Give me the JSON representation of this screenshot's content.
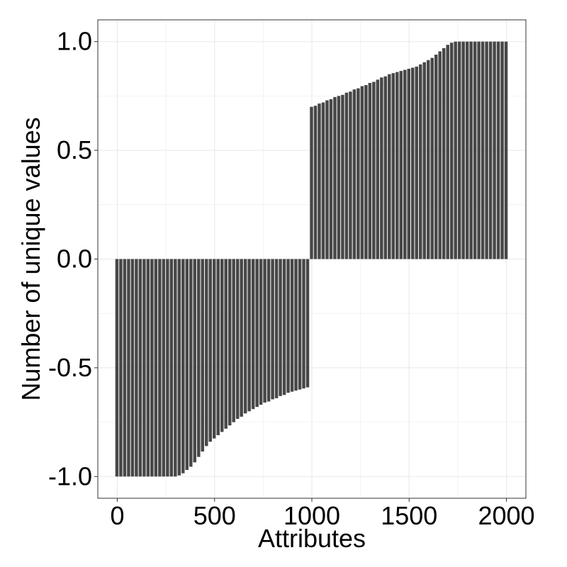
{
  "chart_data": {
    "type": "bar",
    "title": "",
    "xlabel": "Attributes",
    "ylabel": "Number of unique values",
    "xlim": [
      -100,
      2100
    ],
    "ylim": [
      -1.1,
      1.1
    ],
    "x_ticks": [
      0,
      500,
      1000,
      1500,
      2000
    ],
    "y_ticks": [
      -1.0,
      -0.5,
      0.0,
      0.5,
      1.0
    ],
    "x_tick_labels": [
      "0",
      "500",
      "1000",
      "1500",
      "2000"
    ],
    "y_tick_labels": [
      "-1.0",
      "-0.5",
      "0.0",
      "0.5",
      "1.0"
    ],
    "grid": true,
    "legend": "none",
    "bar_color": "#474747",
    "background_color": "#ffffff",
    "grid_color": "#ebebeb",
    "x": [
      0,
      20,
      40,
      60,
      80,
      100,
      120,
      140,
      160,
      180,
      200,
      220,
      240,
      260,
      280,
      300,
      320,
      340,
      360,
      380,
      400,
      420,
      440,
      460,
      480,
      500,
      520,
      540,
      560,
      580,
      600,
      620,
      640,
      660,
      680,
      700,
      720,
      740,
      760,
      780,
      800,
      820,
      840,
      860,
      880,
      900,
      920,
      940,
      960,
      980,
      1000,
      1020,
      1040,
      1060,
      1080,
      1100,
      1120,
      1140,
      1160,
      1180,
      1200,
      1220,
      1240,
      1260,
      1280,
      1300,
      1320,
      1340,
      1360,
      1380,
      1400,
      1420,
      1440,
      1460,
      1480,
      1500,
      1520,
      1540,
      1560,
      1580,
      1600,
      1620,
      1640,
      1660,
      1680,
      1700,
      1720,
      1740,
      1760,
      1780,
      1800,
      1820,
      1840,
      1860,
      1880,
      1900,
      1920,
      1940,
      1960,
      1980,
      2000
    ],
    "values": [
      -1.0,
      -1.0,
      -1.0,
      -1.0,
      -1.0,
      -1.0,
      -1.0,
      -1.0,
      -1.0,
      -1.0,
      -1.0,
      -1.0,
      -1.0,
      -1.0,
      -1.0,
      -1.0,
      -0.995,
      -0.985,
      -0.97,
      -0.955,
      -0.935,
      -0.91,
      -0.885,
      -0.86,
      -0.84,
      -0.825,
      -0.81,
      -0.795,
      -0.78,
      -0.765,
      -0.75,
      -0.735,
      -0.725,
      -0.71,
      -0.7,
      -0.69,
      -0.68,
      -0.67,
      -0.66,
      -0.655,
      -0.645,
      -0.64,
      -0.63,
      -0.625,
      -0.615,
      -0.61,
      -0.605,
      -0.6,
      -0.595,
      -0.59,
      0.7,
      0.705,
      0.715,
      0.72,
      0.73,
      0.735,
      0.745,
      0.75,
      0.755,
      0.765,
      0.77,
      0.78,
      0.785,
      0.795,
      0.8,
      0.81,
      0.815,
      0.825,
      0.835,
      0.84,
      0.85,
      0.855,
      0.86,
      0.865,
      0.87,
      0.875,
      0.88,
      0.885,
      0.895,
      0.905,
      0.915,
      0.925,
      0.94,
      0.955,
      0.97,
      0.985,
      0.995,
      1.0,
      1.0,
      1.0,
      1.0,
      1.0,
      1.0,
      1.0,
      1.0,
      1.0,
      1.0,
      1.0,
      1.0,
      1.0,
      1.0
    ]
  }
}
